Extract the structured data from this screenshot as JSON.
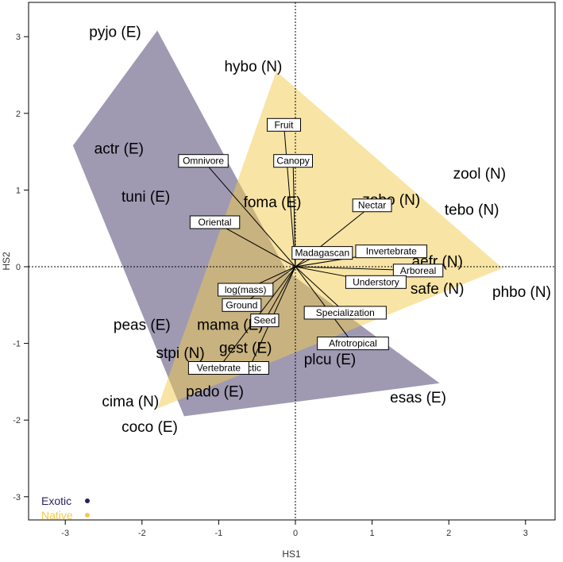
{
  "chart_data": {
    "type": "scatter",
    "xlabel": "HS1",
    "ylabel": "HS2",
    "xlim": [
      -3.4,
      3.4
    ],
    "ylim": [
      -3.3,
      3.4
    ],
    "x_ticks": [
      -3,
      -2,
      -1,
      0,
      1,
      2,
      3
    ],
    "y_ticks": [
      -3,
      -2,
      -1,
      0,
      1,
      2,
      3
    ],
    "grid": false,
    "reference_lines": [
      0,
      0
    ],
    "legend_position": "bottom-left",
    "legend": [
      {
        "name": "Exotic",
        "color": "#2a1f5c"
      },
      {
        "name": "Native",
        "color": "#f2c94c"
      }
    ],
    "hulls": [
      {
        "series": "Exotic",
        "fill": "#3f3666",
        "points": [
          [
            -1.8,
            3.08
          ],
          [
            -2.9,
            1.58
          ],
          [
            -1.45,
            -1.95
          ],
          [
            1.88,
            -1.52
          ],
          [
            -0.12,
            -0.05
          ]
        ]
      },
      {
        "series": "Native",
        "fill": "#f2c94c",
        "points": [
          [
            -0.25,
            2.55
          ],
          [
            2.7,
            -0.02
          ],
          [
            -1.8,
            -1.85
          ]
        ]
      }
    ],
    "species": [
      {
        "label": "pyjo (E)",
        "x": -2.35,
        "y": 3.07
      },
      {
        "label": "hybo (N)",
        "x": -0.55,
        "y": 2.62
      },
      {
        "label": "actr (E)",
        "x": -2.3,
        "y": 1.55
      },
      {
        "label": "tuni (E)",
        "x": -1.95,
        "y": 0.92
      },
      {
        "label": "foma (E)",
        "x": -0.3,
        "y": 0.85
      },
      {
        "label": "zobo (N)",
        "x": 1.25,
        "y": 0.88
      },
      {
        "label": "zool (N)",
        "x": 2.4,
        "y": 1.22
      },
      {
        "label": "tebo (N)",
        "x": 2.3,
        "y": 0.75
      },
      {
        "label": "aefr (N)",
        "x": 1.85,
        "y": 0.08
      },
      {
        "label": "safe (N)",
        "x": 1.85,
        "y": -0.28
      },
      {
        "label": "phbo (N)",
        "x": 2.95,
        "y": -0.32
      },
      {
        "label": "peas (E)",
        "x": -2.0,
        "y": -0.75
      },
      {
        "label": "mama (E)",
        "x": -0.85,
        "y": -0.75
      },
      {
        "label": "gest (E)",
        "x": -0.65,
        "y": -1.05
      },
      {
        "label": "stpi (N)",
        "x": -1.5,
        "y": -1.12
      },
      {
        "label": "plcu (E)",
        "x": 0.45,
        "y": -1.2
      },
      {
        "label": "pado (E)",
        "x": -1.05,
        "y": -1.62
      },
      {
        "label": "cima (N)",
        "x": -2.15,
        "y": -1.75
      },
      {
        "label": "coco (E)",
        "x": -1.9,
        "y": -2.08
      },
      {
        "label": "esas (E)",
        "x": 1.6,
        "y": -1.7
      }
    ],
    "traits": [
      {
        "label": "Fruit",
        "x": -0.15,
        "y": 1.85
      },
      {
        "label": "Canopy",
        "x": -0.03,
        "y": 1.38
      },
      {
        "label": "Omnivore",
        "x": -1.2,
        "y": 1.38
      },
      {
        "label": "Oriental",
        "x": -1.05,
        "y": 0.58
      },
      {
        "label": "Nectar",
        "x": 1.0,
        "y": 0.8
      },
      {
        "label": "Madagascan",
        "x": 0.35,
        "y": 0.18
      },
      {
        "label": "Invertebrate",
        "x": 1.25,
        "y": 0.2
      },
      {
        "label": "Arboreal",
        "x": 1.6,
        "y": -0.05
      },
      {
        "label": "Understory",
        "x": 1.05,
        "y": -0.2
      },
      {
        "label": "log(mass)",
        "x": -0.65,
        "y": -0.3
      },
      {
        "label": "Ground",
        "x": -0.7,
        "y": -0.5
      },
      {
        "label": "Seed",
        "x": -0.4,
        "y": -0.7
      },
      {
        "label": "Specialization",
        "x": 0.65,
        "y": -0.6
      },
      {
        "label": "Afrotropical",
        "x": 0.75,
        "y": -1.0
      },
      {
        "label": "Arctic",
        "x": -0.6,
        "y": -1.32
      },
      {
        "label": "Vertebrate",
        "x": -1.0,
        "y": -1.32
      }
    ]
  }
}
